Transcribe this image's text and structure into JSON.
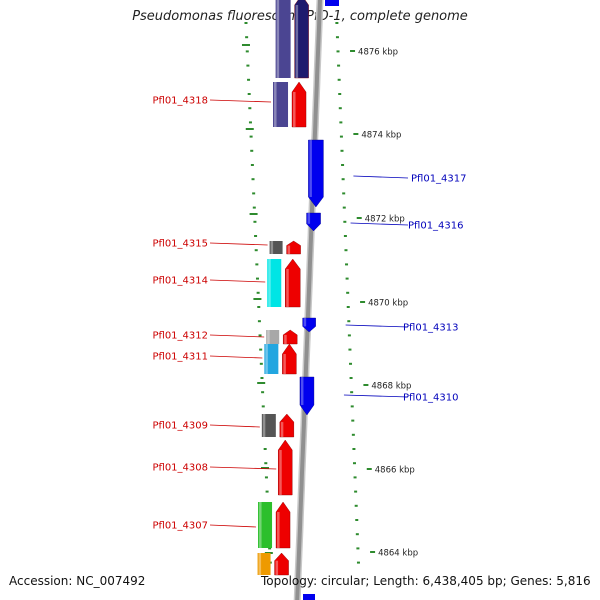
{
  "title": "Pseudomonas fluorescens PfO-1, complete genome",
  "footer": {
    "accession": "Accession: NC_007492",
    "summary": "Topology: circular; Length: 6,438,405 bp; Genes: 5,816"
  },
  "colors": {
    "forward": "#ee0000",
    "reverse": "#0000ee",
    "backbone": "#909090",
    "tick": "#2e8b2e",
    "label_forward": "#cc0000",
    "label_reverse": "#0000bb"
  },
  "scale_labels": [
    "4876 kbp",
    "4874 kbp",
    "4872 kbp",
    "4870 kbp",
    "4868 kbp",
    "4866 kbp",
    "4864 kbp"
  ],
  "genes_forward": [
    {
      "label": "",
      "color": "#1e1a6e",
      "cog_color": "#4b4592"
    },
    {
      "label": "Pfl01_4318",
      "color": "#ee0000",
      "cog_color": "#4b4592"
    },
    {
      "label": "Pfl01_4315",
      "color": "#ee0000",
      "cog_color": "#555555"
    },
    {
      "label": "Pfl01_4314",
      "color": "#ee0000",
      "cog_color": "#00e5e5"
    },
    {
      "label": "Pfl01_4312",
      "color": "#ee0000",
      "cog_color": "#a8a8a8"
    },
    {
      "label": "Pfl01_4311",
      "color": "#ee0000",
      "cog_color": "#22a6e0"
    },
    {
      "label": "Pfl01_4309",
      "color": "#ee0000",
      "cog_color": "#555555"
    },
    {
      "label": "Pfl01_4308",
      "color": "#ee0000",
      "cog_color": ""
    },
    {
      "label": "Pfl01_4307",
      "color": "#ee0000",
      "cog_color": "#2cbf2c"
    },
    {
      "label": "",
      "color": "#ee0000",
      "cog_color": "#ee9a00"
    }
  ],
  "genes_reverse": [
    {
      "label": "Pfl01_4317"
    },
    {
      "label": "Pfl01_4316"
    },
    {
      "label": "Pfl01_4313"
    },
    {
      "label": "Pfl01_4310"
    }
  ]
}
